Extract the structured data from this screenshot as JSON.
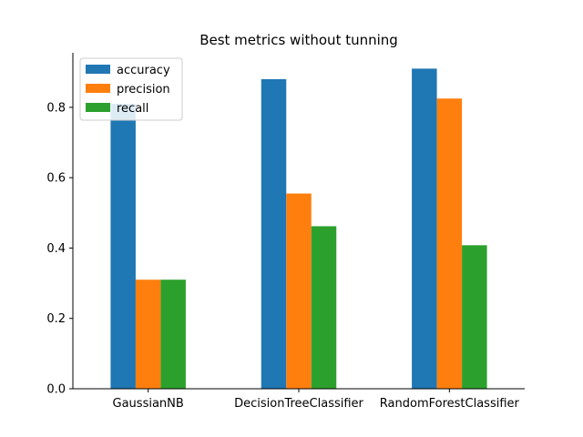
{
  "chart_data": {
    "type": "bar",
    "title": "Best metrics without tunning",
    "xlabel": "",
    "ylabel": "",
    "categories": [
      "GaussianNB",
      "DecisionTreeClassifier",
      "RandomForestClassifier"
    ],
    "series": [
      {
        "name": "accuracy",
        "color": "#1f77b4",
        "values": [
          0.81,
          0.88,
          0.91
        ]
      },
      {
        "name": "precision",
        "color": "#ff7f0e",
        "values": [
          0.31,
          0.555,
          0.825
        ]
      },
      {
        "name": "recall",
        "color": "#2ca02c",
        "values": [
          0.31,
          0.462,
          0.408
        ]
      }
    ],
    "ylim": [
      0,
      0.955
    ],
    "yticks": [
      "0.0",
      "0.2",
      "0.4",
      "0.6",
      "0.8"
    ],
    "grid": false,
    "legend_position": "top-left"
  }
}
